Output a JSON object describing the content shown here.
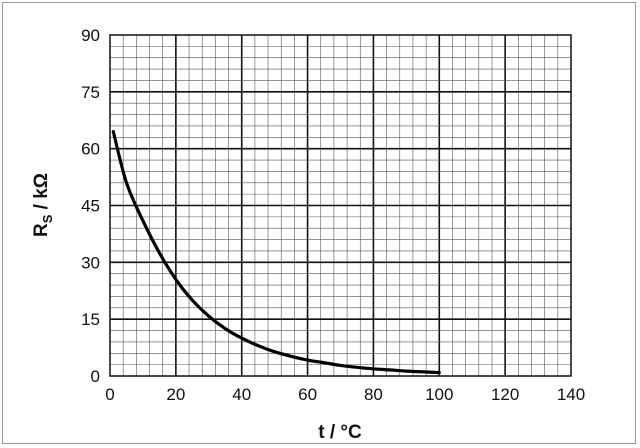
{
  "chart_data": {
    "type": "line",
    "title": "",
    "xlabel": "t / °C",
    "ylabel_main": "R",
    "ylabel_sub": "S",
    "ylabel_rest": " / kΩ",
    "xlim": [
      0,
      140
    ],
    "ylim": [
      0,
      90
    ],
    "x_ticks": [
      "0",
      "20",
      "40",
      "60",
      "80",
      "100",
      "120",
      "140"
    ],
    "y_ticks": [
      "0",
      "15",
      "30",
      "45",
      "60",
      "75",
      "90"
    ],
    "grid": true,
    "series": [
      {
        "x": [
          1,
          5,
          10,
          15,
          20,
          25,
          30,
          35,
          40,
          45,
          50,
          55,
          60,
          65,
          70,
          75,
          80,
          85,
          90,
          95,
          100
        ],
        "y": [
          64.5,
          51,
          41,
          32.5,
          25.5,
          20,
          15.8,
          12.5,
          10,
          8,
          6.4,
          5.2,
          4.2,
          3.5,
          2.8,
          2.3,
          1.9,
          1.6,
          1.3,
          1.1,
          0.9
        ]
      }
    ],
    "colors": {
      "line": "#000000",
      "grid_minor": "#555555",
      "grid_major": "#111111"
    }
  }
}
